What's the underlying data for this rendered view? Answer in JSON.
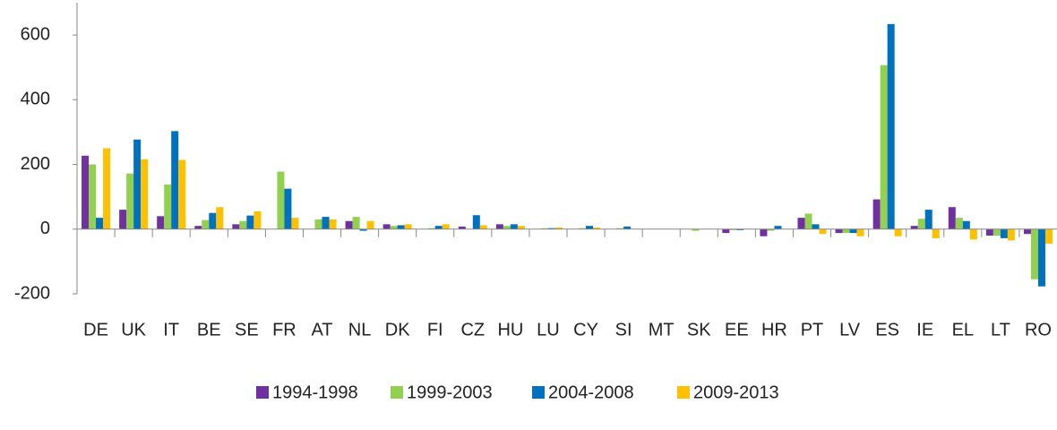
{
  "chart_data": {
    "type": "bar",
    "categories": [
      "DE",
      "UK",
      "IT",
      "BE",
      "SE",
      "FR",
      "AT",
      "NL",
      "DK",
      "FI",
      "CZ",
      "HU",
      "LU",
      "CY",
      "SI",
      "MT",
      "SK",
      "EE",
      "HR",
      "PT",
      "LV",
      "ES",
      "IE",
      "EL",
      "LT",
      "RO"
    ],
    "series": [
      {
        "name": "1994-1998",
        "color": "#7030a0",
        "values": [
          227,
          60,
          40,
          10,
          15,
          0,
          0,
          25,
          15,
          0,
          8,
          15,
          0,
          0,
          0,
          0,
          0,
          -12,
          -22,
          35,
          -12,
          92,
          10,
          68,
          -20,
          -15
        ]
      },
      {
        "name": "1999-2003",
        "color": "#92d050",
        "values": [
          200,
          172,
          138,
          28,
          25,
          178,
          30,
          38,
          10,
          3,
          0,
          10,
          3,
          3,
          3,
          0,
          -5,
          -3,
          -5,
          48,
          -12,
          507,
          32,
          35,
          -20,
          -155
        ]
      },
      {
        "name": "2004-2008",
        "color": "#0070c0",
        "values": [
          35,
          277,
          303,
          50,
          42,
          125,
          38,
          -5,
          12,
          10,
          43,
          15,
          3,
          10,
          8,
          0,
          0,
          -3,
          10,
          15,
          -12,
          634,
          60,
          25,
          -28,
          -177
        ]
      },
      {
        "name": "2009-2013",
        "color": "#ffc000",
        "values": [
          250,
          216,
          214,
          68,
          55,
          35,
          30,
          25,
          15,
          15,
          12,
          10,
          5,
          5,
          0,
          0,
          0,
          0,
          0,
          -15,
          -22,
          -22,
          -28,
          -32,
          -35,
          -45
        ]
      }
    ],
    "ylim": [
      -200,
      700
    ],
    "yticks": [
      -200,
      0,
      200,
      400,
      600
    ],
    "grid": false,
    "legend": "bottom"
  }
}
